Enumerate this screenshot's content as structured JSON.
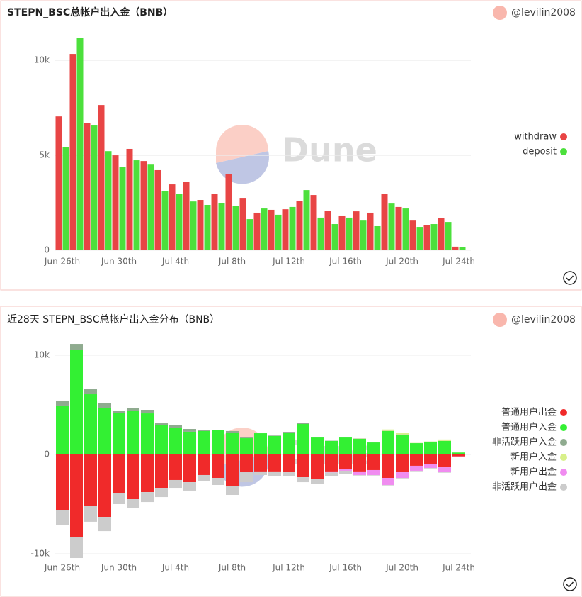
{
  "watermark": "Dune",
  "chart_data": [
    {
      "type": "bar",
      "title": "STEPN_BSC总帐户出入金（BNB）",
      "author": "@levilin2008",
      "categories": [
        "Jun 26th",
        null,
        null,
        null,
        "Jun 30th",
        null,
        null,
        null,
        "Jul 4th",
        null,
        null,
        null,
        "Jul 8th",
        null,
        null,
        null,
        "Jul 12th",
        null,
        null,
        null,
        "Jul 16th",
        null,
        null,
        null,
        "Jul 20th",
        null,
        null,
        null,
        "Jul 24th"
      ],
      "ylim": [
        0,
        11500
      ],
      "yticks": [
        0,
        {
          "value": 5000,
          "label": "5k"
        },
        {
          "value": 10000,
          "label": "10k"
        }
      ],
      "grid": true,
      "series": [
        {
          "name": "withdraw",
          "color": "#e84545",
          "values": [
            7050,
            10340,
            6720,
            7650,
            5000,
            5340,
            4700,
            4220,
            3470,
            3620,
            2650,
            2950,
            4030,
            2760,
            1980,
            2130,
            2160,
            2610,
            2910,
            2090,
            1830,
            2050,
            1980,
            2950,
            2280,
            1600,
            1310,
            1680,
            190
          ]
        },
        {
          "name": "deposit",
          "color": "#4ce03c",
          "values": [
            5450,
            11190,
            6570,
            5220,
            4370,
            4740,
            4510,
            3100,
            2950,
            2570,
            2390,
            2500,
            2350,
            1640,
            2200,
            1870,
            2280,
            3170,
            1720,
            1380,
            1720,
            1600,
            1270,
            2460,
            2200,
            1230,
            1380,
            1490,
            150
          ]
        }
      ]
    },
    {
      "type": "stacked_bar",
      "title": "近28天  STEPN_BSC总帐户出入金分布（BNB）",
      "author": "@levilin2008",
      "categories": [
        "Jun 26th",
        null,
        null,
        null,
        "Jun 30th",
        null,
        null,
        null,
        "Jul 4th",
        null,
        null,
        null,
        "Jul 8th",
        null,
        null,
        null,
        "Jul 12th",
        null,
        null,
        null,
        "Jul 16th",
        null,
        null,
        null,
        "Jul 20th",
        null,
        null,
        null,
        "Jul 24th"
      ],
      "ylim": [
        -10500,
        11500
      ],
      "yticks": [
        {
          "value": -10000,
          "label": "-10k"
        },
        0,
        {
          "value": 10000,
          "label": "10k"
        }
      ],
      "grid": true,
      "series": [
        {
          "name": "普通用户出金",
          "color": "#f02a2a",
          "values": [
            -5640,
            -8290,
            -5210,
            -6290,
            -3930,
            -4500,
            -3790,
            -3360,
            -2570,
            -2790,
            -2070,
            -2360,
            -3210,
            -1790,
            -1710,
            -1710,
            -1790,
            -2290,
            -2500,
            -1710,
            -1500,
            -1710,
            -1570,
            -2360,
            -1790,
            -1140,
            -1000,
            -1290,
            -200
          ]
        },
        {
          "name": "普通用户入金",
          "color": "#33f033",
          "values": [
            4930,
            10570,
            6070,
            4710,
            4210,
            4360,
            4140,
            2930,
            2710,
            2290,
            2360,
            2430,
            2210,
            1640,
            2140,
            1860,
            2210,
            3070,
            1710,
            1360,
            1710,
            1570,
            1210,
            2360,
            2000,
            1140,
            1290,
            1360,
            200
          ]
        },
        {
          "name": "非活跃用户入金",
          "color": "#8fab8f",
          "values": [
            500,
            570,
            500,
            500,
            150,
            350,
            360,
            210,
            290,
            280,
            70,
            70,
            150,
            70,
            70,
            50,
            70,
            140,
            70,
            30,
            30,
            30,
            20,
            20,
            20,
            10,
            10,
            10,
            0
          ]
        },
        {
          "name": "新用户入金",
          "color": "#d8f08a",
          "values": [
            0,
            0,
            0,
            0,
            0,
            0,
            0,
            0,
            0,
            0,
            0,
            0,
            0,
            0,
            0,
            0,
            0,
            0,
            0,
            0,
            0,
            20,
            30,
            140,
            140,
            20,
            20,
            140,
            20
          ]
        },
        {
          "name": "新用户出金",
          "color": "#f08cf0",
          "values": [
            0,
            0,
            0,
            0,
            0,
            0,
            0,
            0,
            0,
            0,
            0,
            0,
            0,
            0,
            0,
            0,
            0,
            0,
            0,
            -100,
            -140,
            -360,
            -500,
            -710,
            -570,
            -500,
            -360,
            -500,
            -20
          ]
        },
        {
          "name": "非活跃用户出金",
          "color": "#cccccc",
          "values": [
            -1500,
            -2140,
            -1570,
            -1430,
            -1070,
            -860,
            -1000,
            -930,
            -790,
            -850,
            -640,
            -710,
            -860,
            -1000,
            -360,
            -500,
            -420,
            -500,
            -500,
            -400,
            -300,
            -50,
            -50,
            -50,
            -50,
            -50,
            -50,
            -50,
            -20
          ]
        }
      ]
    }
  ]
}
